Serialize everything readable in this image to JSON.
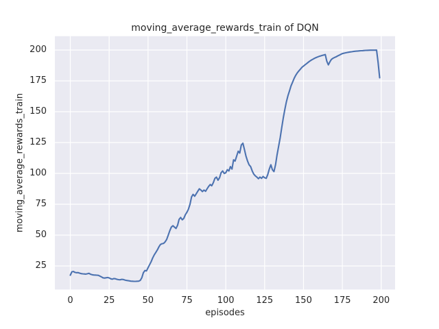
{
  "chart_data": {
    "type": "line",
    "title": "moving_average_rewards_train of DQN",
    "xlabel": "episodes",
    "ylabel": "moving_average_rewards_train",
    "series_name": "moving_average_rewards_train",
    "legend": "none",
    "grid": "on",
    "x_ticks": [
      0,
      25,
      50,
      75,
      100,
      125,
      150,
      175,
      200
    ],
    "y_ticks": [
      25,
      50,
      75,
      100,
      125,
      150,
      175,
      200
    ],
    "xlim": [
      -9.93,
      208.93
    ],
    "ylim": [
      5.9,
      211.2
    ],
    "line_color": "#4C72B0",
    "axes_bg_color": "#EAEAF2",
    "grid_color": "#FFFFFF",
    "text_color": "#262626",
    "x_start": 0,
    "x_step": 1,
    "values": [
      17.5,
      20.3,
      20.5,
      19.8,
      19.5,
      19.6,
      19.2,
      18.8,
      18.6,
      18.5,
      18.4,
      18.7,
      19.0,
      18.3,
      17.9,
      17.7,
      17.6,
      17.5,
      17.4,
      16.8,
      16.2,
      15.4,
      15.2,
      15.4,
      15.6,
      15.3,
      14.6,
      14.3,
      14.8,
      14.6,
      14.2,
      13.9,
      13.8,
      14.1,
      14.0,
      13.6,
      13.3,
      13.1,
      12.9,
      12.7,
      12.6,
      12.5,
      12.5,
      12.6,
      12.7,
      13.3,
      15.5,
      19.5,
      21.3,
      21.0,
      23.5,
      26.0,
      28.5,
      31.5,
      34.0,
      36.0,
      38.0,
      40.5,
      42.4,
      43.0,
      43.3,
      44.5,
      46.5,
      50.0,
      53.5,
      56.5,
      57.6,
      56.5,
      55.4,
      58.0,
      62.8,
      64.3,
      62.4,
      63.5,
      66.5,
      68.5,
      71.0,
      75.0,
      81.0,
      83.0,
      81.5,
      83.5,
      85.5,
      87.5,
      86.5,
      85.3,
      86.5,
      85.5,
      87.5,
      89.5,
      91.0,
      90.0,
      92.5,
      96.0,
      97.0,
      94.5,
      96.5,
      100.5,
      102.0,
      100.0,
      100.5,
      103.0,
      102.0,
      105.5,
      103.5,
      111.0,
      110.0,
      114.0,
      118.0,
      116.5,
      123.0,
      124.5,
      119.5,
      114.0,
      110.0,
      107.0,
      105.5,
      102.0,
      99.5,
      98.0,
      97.0,
      95.7,
      97.0,
      96.0,
      97.5,
      96.5,
      96.0,
      99.0,
      103.5,
      107.0,
      103.0,
      101.5,
      107.0,
      115.0,
      122.0,
      129.0,
      137.0,
      145.0,
      152.0,
      158.0,
      163.0,
      167.0,
      171.0,
      174.0,
      177.0,
      179.5,
      181.5,
      183.0,
      184.5,
      186.0,
      187.0,
      188.0,
      189.0,
      190.0,
      191.0,
      191.8,
      192.5,
      193.2,
      193.8,
      194.3,
      194.8,
      195.2,
      195.6,
      195.9,
      196.3,
      191.0,
      188.0,
      190.5,
      192.4,
      193.3,
      194.0,
      194.5,
      195.2,
      195.8,
      196.5,
      197.1,
      197.4,
      197.7,
      198.0,
      198.2,
      198.4,
      198.6,
      198.8,
      199.0,
      199.1,
      199.2,
      199.3,
      199.4,
      199.5,
      199.6,
      199.7,
      199.75,
      199.8,
      199.85,
      199.85,
      199.85,
      199.85,
      199.9,
      190.0,
      177.5
    ]
  }
}
